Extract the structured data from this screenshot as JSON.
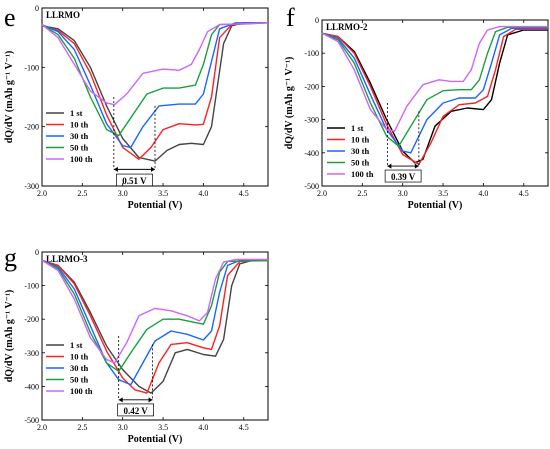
{
  "chart_data": [
    {
      "panel": "e",
      "type": "line",
      "title": "LLRMO",
      "xlabel": "Potential (V)",
      "ylabel": "dQ/dV (mAh g⁻¹ V⁻¹)",
      "xlim": [
        2.0,
        4.8
      ],
      "ylim": [
        -300,
        0
      ],
      "xticks": [
        "2.0",
        "2.5",
        "3.0",
        "3.5",
        "4.0",
        "4.5"
      ],
      "yticks": [
        "0",
        "-100",
        "-200",
        "-300"
      ],
      "annotation": "0.51 V",
      "legend_position": "bottom-left",
      "series": [
        {
          "name": "1 st",
          "color": "#444444",
          "points": [
            [
              2.0,
              -30
            ],
            [
              2.2,
              -35
            ],
            [
              2.4,
              -55
            ],
            [
              2.6,
              -100
            ],
            [
              2.8,
              -165
            ],
            [
              3.0,
              -220
            ],
            [
              3.2,
              -252
            ],
            [
              3.4,
              -258
            ],
            [
              3.55,
              -240
            ],
            [
              3.7,
              -230
            ],
            [
              3.85,
              -228
            ],
            [
              4.0,
              -230
            ],
            [
              4.1,
              -200
            ],
            [
              4.25,
              -60
            ],
            [
              4.35,
              -30
            ],
            [
              4.5,
              -25
            ],
            [
              4.8,
              -25
            ]
          ]
        },
        {
          "name": "10 th",
          "color": "#ff2020",
          "points": [
            [
              2.0,
              -30
            ],
            [
              2.2,
              -38
            ],
            [
              2.4,
              -60
            ],
            [
              2.6,
              -110
            ],
            [
              2.8,
              -180
            ],
            [
              3.0,
              -235
            ],
            [
              3.2,
              -255
            ],
            [
              3.35,
              -235
            ],
            [
              3.5,
              -205
            ],
            [
              3.7,
              -195
            ],
            [
              3.9,
              -197
            ],
            [
              4.0,
              -196
            ],
            [
              4.1,
              -150
            ],
            [
              4.2,
              -50
            ],
            [
              4.35,
              -28
            ],
            [
              4.8,
              -25
            ]
          ]
        },
        {
          "name": "30 th",
          "color": "#1a66ff",
          "points": [
            [
              2.0,
              -28
            ],
            [
              2.2,
              -40
            ],
            [
              2.4,
              -70
            ],
            [
              2.6,
              -130
            ],
            [
              2.8,
              -195
            ],
            [
              3.0,
              -232
            ],
            [
              3.1,
              -235
            ],
            [
              3.25,
              -200
            ],
            [
              3.45,
              -165
            ],
            [
              3.7,
              -162
            ],
            [
              3.9,
              -162
            ],
            [
              4.0,
              -145
            ],
            [
              4.1,
              -90
            ],
            [
              4.2,
              -35
            ],
            [
              4.4,
              -25
            ],
            [
              4.8,
              -25
            ]
          ]
        },
        {
          "name": "50 th",
          "color": "#1aa03c",
          "points": [
            [
              2.0,
              -28
            ],
            [
              2.2,
              -45
            ],
            [
              2.4,
              -85
            ],
            [
              2.6,
              -150
            ],
            [
              2.8,
              -205
            ],
            [
              2.95,
              -215
            ],
            [
              3.1,
              -185
            ],
            [
              3.3,
              -145
            ],
            [
              3.5,
              -135
            ],
            [
              3.7,
              -135
            ],
            [
              3.9,
              -130
            ],
            [
              4.0,
              -95
            ],
            [
              4.1,
              -45
            ],
            [
              4.2,
              -28
            ],
            [
              4.8,
              -25
            ]
          ]
        },
        {
          "name": "100 th",
          "color": "#cc66ff",
          "points": [
            [
              2.0,
              -28
            ],
            [
              2.2,
              -50
            ],
            [
              2.4,
              -95
            ],
            [
              2.6,
              -140
            ],
            [
              2.8,
              -160
            ],
            [
              2.9,
              -163
            ],
            [
              3.05,
              -145
            ],
            [
              3.25,
              -110
            ],
            [
              3.5,
              -103
            ],
            [
              3.7,
              -105
            ],
            [
              3.85,
              -95
            ],
            [
              3.95,
              -70
            ],
            [
              4.05,
              -40
            ],
            [
              4.2,
              -28
            ],
            [
              4.8,
              -25
            ]
          ]
        }
      ]
    },
    {
      "panel": "f",
      "type": "line",
      "title": "LLRMO-2",
      "xlabel": "Potential (V)",
      "ylabel": "dQ/dV (mAh g⁻¹ V⁻¹)",
      "xlim": [
        2.0,
        4.8
      ],
      "ylim": [
        -500,
        0
      ],
      "xticks": [
        "2.0",
        "2.5",
        "3.0",
        "3.5",
        "4.0",
        "4.5"
      ],
      "yticks": [
        "0",
        "-100",
        "-200",
        "-300",
        "-400",
        "-500"
      ],
      "annotation": "0.39 V",
      "legend_position": "bottom-left",
      "series": [
        {
          "name": "1 st",
          "color": "#000000",
          "points": [
            [
              2.0,
              -40
            ],
            [
              2.2,
              -50
            ],
            [
              2.4,
              -95
            ],
            [
              2.6,
              -190
            ],
            [
              2.8,
              -300
            ],
            [
              3.0,
              -395
            ],
            [
              3.15,
              -430
            ],
            [
              3.25,
              -420
            ],
            [
              3.4,
              -320
            ],
            [
              3.6,
              -275
            ],
            [
              3.8,
              -265
            ],
            [
              4.0,
              -270
            ],
            [
              4.1,
              -240
            ],
            [
              4.2,
              -130
            ],
            [
              4.3,
              -45
            ],
            [
              4.5,
              -30
            ],
            [
              4.8,
              -30
            ]
          ]
        },
        {
          "name": "10 th",
          "color": "#ff2020",
          "points": [
            [
              2.0,
              -40
            ],
            [
              2.2,
              -50
            ],
            [
              2.4,
              -100
            ],
            [
              2.6,
              -200
            ],
            [
              2.8,
              -315
            ],
            [
              3.0,
              -405
            ],
            [
              3.2,
              -435
            ],
            [
              3.35,
              -370
            ],
            [
              3.5,
              -290
            ],
            [
              3.7,
              -255
            ],
            [
              3.9,
              -250
            ],
            [
              4.05,
              -230
            ],
            [
              4.15,
              -150
            ],
            [
              4.25,
              -50
            ],
            [
              4.4,
              -28
            ],
            [
              4.8,
              -28
            ]
          ]
        },
        {
          "name": "30 th",
          "color": "#1a66ff",
          "points": [
            [
              2.0,
              -40
            ],
            [
              2.2,
              -55
            ],
            [
              2.4,
              -115
            ],
            [
              2.6,
              -225
            ],
            [
              2.8,
              -330
            ],
            [
              3.0,
              -395
            ],
            [
              3.1,
              -400
            ],
            [
              3.3,
              -300
            ],
            [
              3.5,
              -250
            ],
            [
              3.7,
              -235
            ],
            [
              3.9,
              -235
            ],
            [
              4.0,
              -210
            ],
            [
              4.1,
              -130
            ],
            [
              4.2,
              -45
            ],
            [
              4.35,
              -25
            ],
            [
              4.8,
              -25
            ]
          ]
        },
        {
          "name": "50 th",
          "color": "#1aa03c",
          "points": [
            [
              2.0,
              -40
            ],
            [
              2.2,
              -60
            ],
            [
              2.4,
              -130
            ],
            [
              2.6,
              -250
            ],
            [
              2.8,
              -350
            ],
            [
              2.95,
              -380
            ],
            [
              3.1,
              -320
            ],
            [
              3.3,
              -240
            ],
            [
              3.5,
              -213
            ],
            [
              3.7,
              -210
            ],
            [
              3.85,
              -210
            ],
            [
              3.95,
              -180
            ],
            [
              4.05,
              -100
            ],
            [
              4.15,
              -35
            ],
            [
              4.3,
              -22
            ],
            [
              4.8,
              -22
            ]
          ]
        },
        {
          "name": "100 th",
          "color": "#cc66ff",
          "points": [
            [
              2.0,
              -40
            ],
            [
              2.2,
              -65
            ],
            [
              2.4,
              -150
            ],
            [
              2.6,
              -270
            ],
            [
              2.8,
              -330
            ],
            [
              2.9,
              -335
            ],
            [
              3.05,
              -260
            ],
            [
              3.25,
              -195
            ],
            [
              3.45,
              -180
            ],
            [
              3.6,
              -185
            ],
            [
              3.75,
              -185
            ],
            [
              3.85,
              -150
            ],
            [
              3.95,
              -70
            ],
            [
              4.05,
              -30
            ],
            [
              4.2,
              -20
            ],
            [
              4.8,
              -20
            ]
          ]
        }
      ]
    },
    {
      "panel": "g",
      "type": "line",
      "title": "LLRMO-3",
      "xlabel": "Potential (V)",
      "ylabel": "dQ/dV (mAh g⁻¹ V⁻¹)",
      "xlim": [
        2.0,
        4.8
      ],
      "ylim": [
        -500,
        0
      ],
      "xticks": [
        "2.0",
        "2.5",
        "3.0",
        "3.5",
        "4.0",
        "4.5"
      ],
      "yticks": [
        "0",
        "-100",
        "-200",
        "-300",
        "-400",
        "-500"
      ],
      "annotation": "0.42 V",
      "legend_position": "bottom-left",
      "series": [
        {
          "name": "1 st",
          "color": "#444444",
          "points": [
            [
              2.0,
              -25
            ],
            [
              2.2,
              -40
            ],
            [
              2.4,
              -90
            ],
            [
              2.6,
              -180
            ],
            [
              2.8,
              -280
            ],
            [
              3.0,
              -350
            ],
            [
              3.2,
              -400
            ],
            [
              3.35,
              -420
            ],
            [
              3.5,
              -385
            ],
            [
              3.65,
              -300
            ],
            [
              3.8,
              -290
            ],
            [
              4.0,
              -305
            ],
            [
              4.15,
              -310
            ],
            [
              4.25,
              -260
            ],
            [
              4.35,
              -100
            ],
            [
              4.45,
              -35
            ],
            [
              4.6,
              -25
            ],
            [
              4.8,
              -25
            ]
          ]
        },
        {
          "name": "10 th",
          "color": "#ff2020",
          "points": [
            [
              2.0,
              -25
            ],
            [
              2.2,
              -40
            ],
            [
              2.4,
              -95
            ],
            [
              2.6,
              -190
            ],
            [
              2.8,
              -295
            ],
            [
              3.0,
              -375
            ],
            [
              3.15,
              -410
            ],
            [
              3.3,
              -420
            ],
            [
              3.45,
              -330
            ],
            [
              3.6,
              -275
            ],
            [
              3.8,
              -270
            ],
            [
              4.0,
              -285
            ],
            [
              4.1,
              -290
            ],
            [
              4.2,
              -220
            ],
            [
              4.3,
              -70
            ],
            [
              4.45,
              -28
            ],
            [
              4.8,
              -25
            ]
          ]
        },
        {
          "name": "30 th",
          "color": "#1a66ff",
          "points": [
            [
              2.0,
              -25
            ],
            [
              2.2,
              -45
            ],
            [
              2.4,
              -110
            ],
            [
              2.6,
              -220
            ],
            [
              2.8,
              -330
            ],
            [
              2.95,
              -380
            ],
            [
              3.1,
              -395
            ],
            [
              3.25,
              -330
            ],
            [
              3.4,
              -265
            ],
            [
              3.6,
              -235
            ],
            [
              3.8,
              -245
            ],
            [
              4.0,
              -262
            ],
            [
              4.1,
              -235
            ],
            [
              4.2,
              -120
            ],
            [
              4.3,
              -40
            ],
            [
              4.45,
              -25
            ],
            [
              4.8,
              -25
            ]
          ]
        },
        {
          "name": "50 th",
          "color": "#1aa03c",
          "points": [
            [
              2.0,
              -25
            ],
            [
              2.2,
              -50
            ],
            [
              2.4,
              -125
            ],
            [
              2.6,
              -240
            ],
            [
              2.8,
              -330
            ],
            [
              2.95,
              -355
            ],
            [
              3.1,
              -300
            ],
            [
              3.3,
              -230
            ],
            [
              3.5,
              -200
            ],
            [
              3.7,
              -200
            ],
            [
              3.9,
              -210
            ],
            [
              4.0,
              -215
            ],
            [
              4.1,
              -160
            ],
            [
              4.2,
              -60
            ],
            [
              4.3,
              -28
            ],
            [
              4.8,
              -25
            ]
          ]
        },
        {
          "name": "100 th",
          "color": "#cc66ff",
          "points": [
            [
              2.0,
              -25
            ],
            [
              2.2,
              -55
            ],
            [
              2.4,
              -140
            ],
            [
              2.6,
              -255
            ],
            [
              2.8,
              -320
            ],
            [
              2.9,
              -330
            ],
            [
              3.05,
              -270
            ],
            [
              3.2,
              -190
            ],
            [
              3.4,
              -168
            ],
            [
              3.6,
              -175
            ],
            [
              3.8,
              -190
            ],
            [
              3.95,
              -205
            ],
            [
              4.05,
              -180
            ],
            [
              4.15,
              -80
            ],
            [
              4.25,
              -30
            ],
            [
              4.4,
              -22
            ],
            [
              4.8,
              -22
            ]
          ]
        }
      ]
    }
  ]
}
